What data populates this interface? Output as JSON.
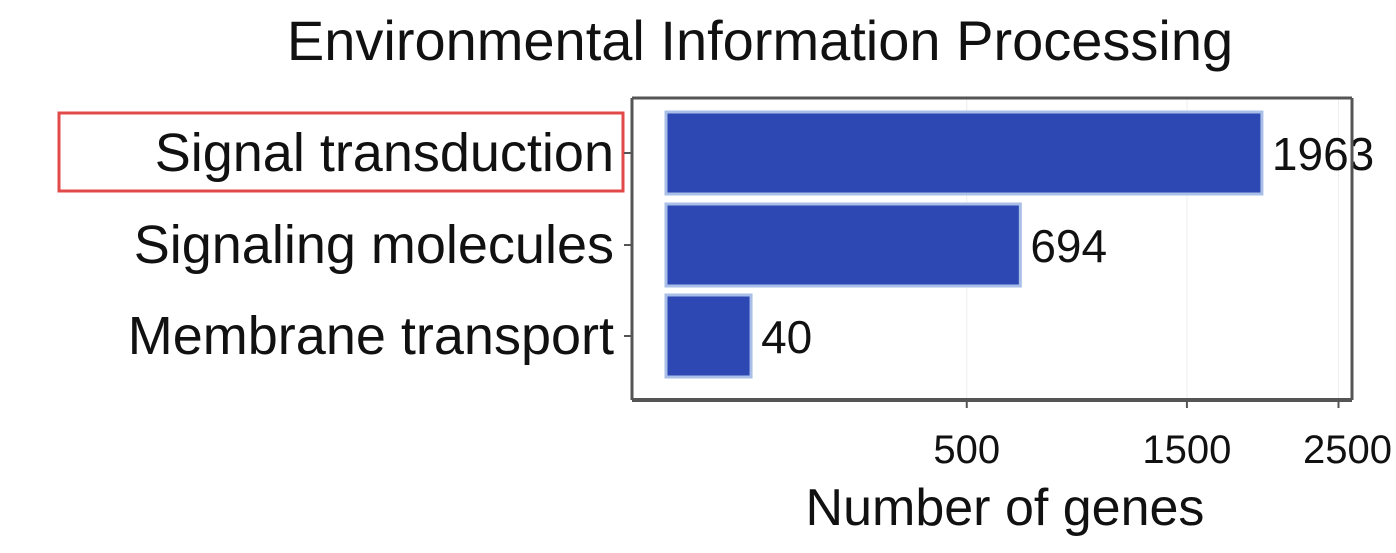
{
  "chart_data": {
    "type": "bar",
    "orientation": "horizontal",
    "title": "Environmental Information Processing",
    "xlabel": "Number of genes",
    "ylabel": "",
    "categories": [
      "Signal transduction",
      "Signaling molecules",
      "Membrane transport"
    ],
    "values": [
      1963,
      694,
      40
    ],
    "data_labels": [
      "1963",
      "694",
      "40"
    ],
    "x_scale": "sqrt",
    "xlim": [
      0,
      2500
    ],
    "xticks": [
      500,
      1500,
      2500
    ],
    "xtick_labels": [
      "500",
      "1500",
      "2500"
    ],
    "highlighted_category": "Signal transduction",
    "grid": true,
    "legend": "none",
    "colors": {
      "bar": "#2d47b3",
      "bar_edge": "#a9bfe8",
      "highlight_box": "#e24a4a",
      "text": "#111111",
      "axis": "#555555",
      "grid": "#eeeeee"
    }
  }
}
